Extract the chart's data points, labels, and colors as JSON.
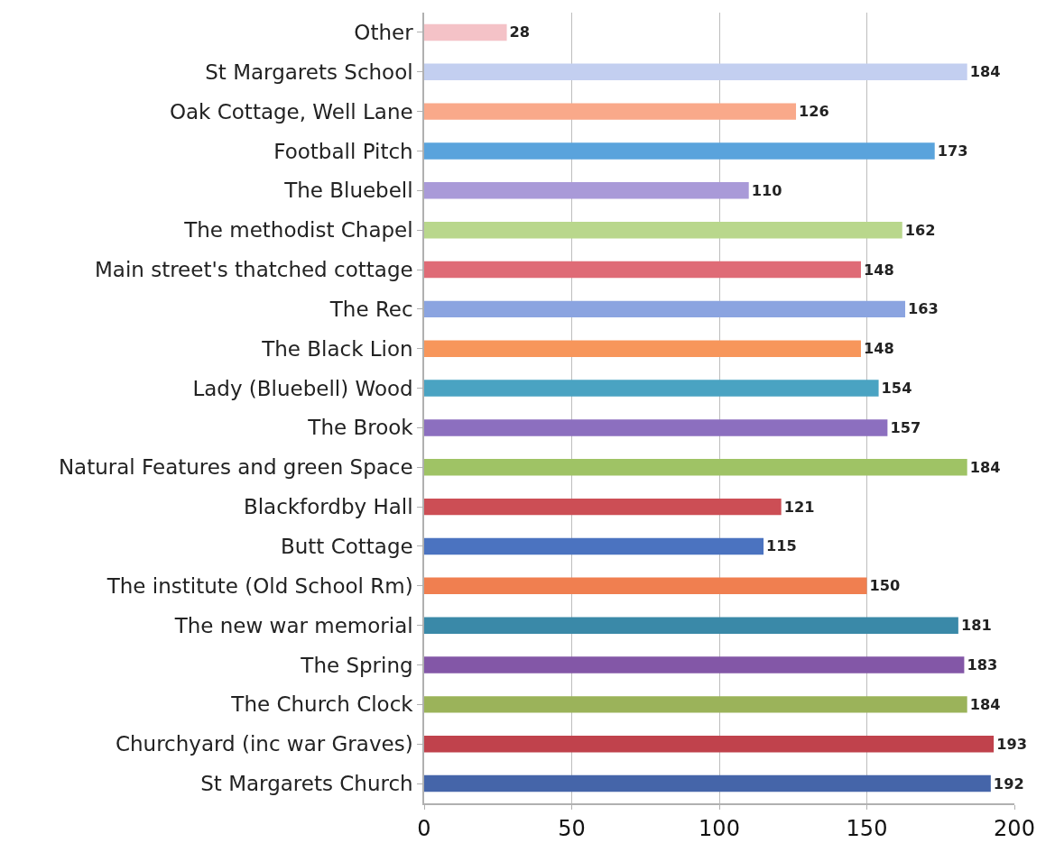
{
  "chart_data": {
    "type": "bar",
    "orientation": "horizontal",
    "categories": [
      "Other",
      "St Margarets School",
      "Oak Cottage, Well Lane",
      "Football Pitch",
      "The Bluebell",
      "The methodist Chapel",
      "Main street's thatched cottage",
      "The Rec",
      "The Black Lion",
      "Lady (Bluebell) Wood",
      "The Brook",
      "Natural Features and green Space",
      "Blackfordby Hall",
      "Butt Cottage",
      "The institute (Old School Rm)",
      "The new war memorial",
      "The Spring",
      "The Church Clock",
      "Churchyard (inc war Graves)",
      "St Margarets Church"
    ],
    "values": [
      28,
      184,
      126,
      173,
      110,
      162,
      148,
      163,
      148,
      154,
      157,
      184,
      121,
      115,
      150,
      181,
      183,
      184,
      193,
      192
    ],
    "colors": [
      "#f4c2c7",
      "#c3cff0",
      "#f9a98a",
      "#5aa3dc",
      "#a99ad8",
      "#b9d78c",
      "#df6b76",
      "#8ba4e0",
      "#f7965b",
      "#4aa3c2",
      "#8c6fbf",
      "#9fc365",
      "#cc4e55",
      "#4b73c0",
      "#f07f50",
      "#3a89a8",
      "#8357a7",
      "#9bb35a",
      "#c0424c",
      "#4565a9"
    ],
    "xlim": [
      0,
      200
    ],
    "xticks": [
      0,
      50,
      100,
      150,
      200
    ],
    "grid": "x",
    "data_labels": true
  }
}
